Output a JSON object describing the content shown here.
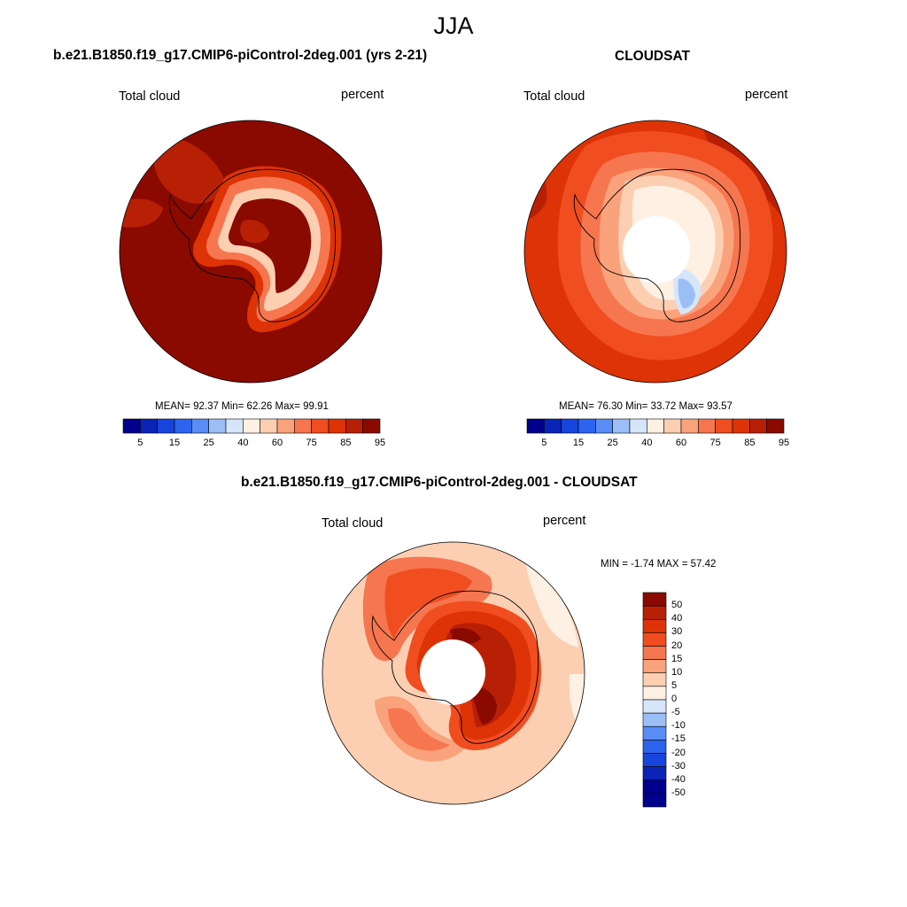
{
  "page": {
    "title": "JJA"
  },
  "palette": {
    "levels": [
      "#00008c",
      "#0a24b8",
      "#1644dc",
      "#2c64f0",
      "#5a8cf5",
      "#9cbef7",
      "#d6e6fa",
      "#fff0e4",
      "#fccfb2",
      "#f9a27c",
      "#f6764f",
      "#f04d20",
      "#dd3306",
      "#b82006",
      "#8a0a00"
    ]
  },
  "panels": [
    {
      "id": "model",
      "title": "b.e21.B1850.f19_g17.CMIP6-piControl-2deg.001 (yrs 2-21)",
      "field_label": "Total cloud",
      "units_label": "percent",
      "stats": "MEAN=  92.37  Min=  62.26  Max=  99.91",
      "colorbar_ticks": [
        "5",
        "15",
        "25",
        "40",
        "60",
        "75",
        "85",
        "95"
      ]
    },
    {
      "id": "obs",
      "title": "CLOUDSAT",
      "field_label": "Total cloud",
      "units_label": "percent",
      "stats": "MEAN=  76.30  Min=  33.72  Max=  93.57",
      "colorbar_ticks": [
        "5",
        "15",
        "25",
        "40",
        "60",
        "75",
        "85",
        "95"
      ]
    },
    {
      "id": "diff",
      "title": "b.e21.B1850.f19_g17.CMIP6-piControl-2deg.001 - CLOUDSAT",
      "field_label": "Total cloud",
      "units_label": "percent",
      "stats": "MIN =  -1.74 MAX =  57.42",
      "colorbar_ticks": [
        "50",
        "40",
        "30",
        "20",
        "15",
        "10",
        "5",
        "0",
        "-5",
        "-10",
        "-15",
        "-20",
        "-30",
        "-40",
        "-50"
      ]
    }
  ]
}
